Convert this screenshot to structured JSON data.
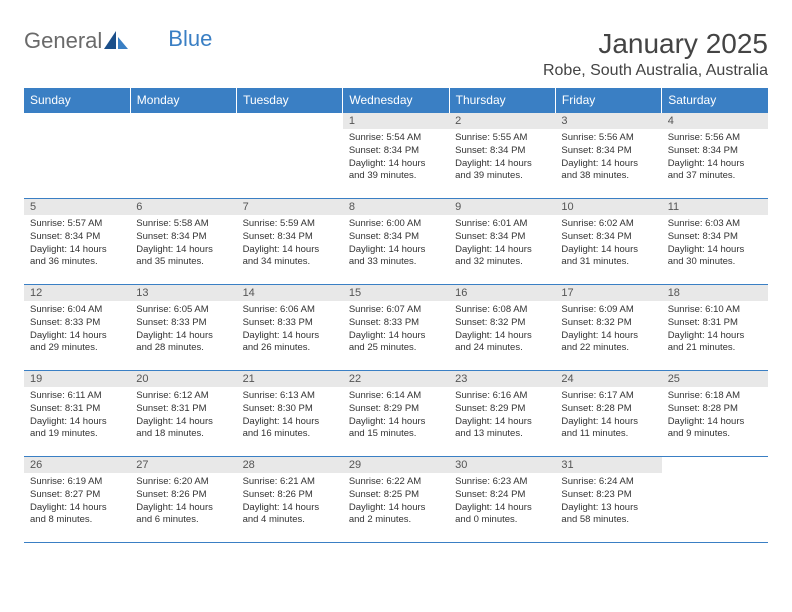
{
  "logo": {
    "general": "General",
    "blue": "Blue"
  },
  "title": "January 2025",
  "location": "Robe, South Australia, Australia",
  "columns": [
    "Sunday",
    "Monday",
    "Tuesday",
    "Wednesday",
    "Thursday",
    "Friday",
    "Saturday"
  ],
  "colors": {
    "header_bg": "#3a7fc4",
    "header_text": "#ffffff",
    "daynum_bg": "#e8e8e8",
    "border": "#3a7fc4",
    "text": "#333333"
  },
  "weeks": [
    [
      {
        "n": "",
        "lines": []
      },
      {
        "n": "",
        "lines": []
      },
      {
        "n": "",
        "lines": []
      },
      {
        "n": "1",
        "lines": [
          "Sunrise: 5:54 AM",
          "Sunset: 8:34 PM",
          "Daylight: 14 hours and 39 minutes."
        ]
      },
      {
        "n": "2",
        "lines": [
          "Sunrise: 5:55 AM",
          "Sunset: 8:34 PM",
          "Daylight: 14 hours and 39 minutes."
        ]
      },
      {
        "n": "3",
        "lines": [
          "Sunrise: 5:56 AM",
          "Sunset: 8:34 PM",
          "Daylight: 14 hours and 38 minutes."
        ]
      },
      {
        "n": "4",
        "lines": [
          "Sunrise: 5:56 AM",
          "Sunset: 8:34 PM",
          "Daylight: 14 hours and 37 minutes."
        ]
      }
    ],
    [
      {
        "n": "5",
        "lines": [
          "Sunrise: 5:57 AM",
          "Sunset: 8:34 PM",
          "Daylight: 14 hours and 36 minutes."
        ]
      },
      {
        "n": "6",
        "lines": [
          "Sunrise: 5:58 AM",
          "Sunset: 8:34 PM",
          "Daylight: 14 hours and 35 minutes."
        ]
      },
      {
        "n": "7",
        "lines": [
          "Sunrise: 5:59 AM",
          "Sunset: 8:34 PM",
          "Daylight: 14 hours and 34 minutes."
        ]
      },
      {
        "n": "8",
        "lines": [
          "Sunrise: 6:00 AM",
          "Sunset: 8:34 PM",
          "Daylight: 14 hours and 33 minutes."
        ]
      },
      {
        "n": "9",
        "lines": [
          "Sunrise: 6:01 AM",
          "Sunset: 8:34 PM",
          "Daylight: 14 hours and 32 minutes."
        ]
      },
      {
        "n": "10",
        "lines": [
          "Sunrise: 6:02 AM",
          "Sunset: 8:34 PM",
          "Daylight: 14 hours and 31 minutes."
        ]
      },
      {
        "n": "11",
        "lines": [
          "Sunrise: 6:03 AM",
          "Sunset: 8:34 PM",
          "Daylight: 14 hours and 30 minutes."
        ]
      }
    ],
    [
      {
        "n": "12",
        "lines": [
          "Sunrise: 6:04 AM",
          "Sunset: 8:33 PM",
          "Daylight: 14 hours and 29 minutes."
        ]
      },
      {
        "n": "13",
        "lines": [
          "Sunrise: 6:05 AM",
          "Sunset: 8:33 PM",
          "Daylight: 14 hours and 28 minutes."
        ]
      },
      {
        "n": "14",
        "lines": [
          "Sunrise: 6:06 AM",
          "Sunset: 8:33 PM",
          "Daylight: 14 hours and 26 minutes."
        ]
      },
      {
        "n": "15",
        "lines": [
          "Sunrise: 6:07 AM",
          "Sunset: 8:33 PM",
          "Daylight: 14 hours and 25 minutes."
        ]
      },
      {
        "n": "16",
        "lines": [
          "Sunrise: 6:08 AM",
          "Sunset: 8:32 PM",
          "Daylight: 14 hours and 24 minutes."
        ]
      },
      {
        "n": "17",
        "lines": [
          "Sunrise: 6:09 AM",
          "Sunset: 8:32 PM",
          "Daylight: 14 hours and 22 minutes."
        ]
      },
      {
        "n": "18",
        "lines": [
          "Sunrise: 6:10 AM",
          "Sunset: 8:31 PM",
          "Daylight: 14 hours and 21 minutes."
        ]
      }
    ],
    [
      {
        "n": "19",
        "lines": [
          "Sunrise: 6:11 AM",
          "Sunset: 8:31 PM",
          "Daylight: 14 hours and 19 minutes."
        ]
      },
      {
        "n": "20",
        "lines": [
          "Sunrise: 6:12 AM",
          "Sunset: 8:31 PM",
          "Daylight: 14 hours and 18 minutes."
        ]
      },
      {
        "n": "21",
        "lines": [
          "Sunrise: 6:13 AM",
          "Sunset: 8:30 PM",
          "Daylight: 14 hours and 16 minutes."
        ]
      },
      {
        "n": "22",
        "lines": [
          "Sunrise: 6:14 AM",
          "Sunset: 8:29 PM",
          "Daylight: 14 hours and 15 minutes."
        ]
      },
      {
        "n": "23",
        "lines": [
          "Sunrise: 6:16 AM",
          "Sunset: 8:29 PM",
          "Daylight: 14 hours and 13 minutes."
        ]
      },
      {
        "n": "24",
        "lines": [
          "Sunrise: 6:17 AM",
          "Sunset: 8:28 PM",
          "Daylight: 14 hours and 11 minutes."
        ]
      },
      {
        "n": "25",
        "lines": [
          "Sunrise: 6:18 AM",
          "Sunset: 8:28 PM",
          "Daylight: 14 hours and 9 minutes."
        ]
      }
    ],
    [
      {
        "n": "26",
        "lines": [
          "Sunrise: 6:19 AM",
          "Sunset: 8:27 PM",
          "Daylight: 14 hours and 8 minutes."
        ]
      },
      {
        "n": "27",
        "lines": [
          "Sunrise: 6:20 AM",
          "Sunset: 8:26 PM",
          "Daylight: 14 hours and 6 minutes."
        ]
      },
      {
        "n": "28",
        "lines": [
          "Sunrise: 6:21 AM",
          "Sunset: 8:26 PM",
          "Daylight: 14 hours and 4 minutes."
        ]
      },
      {
        "n": "29",
        "lines": [
          "Sunrise: 6:22 AM",
          "Sunset: 8:25 PM",
          "Daylight: 14 hours and 2 minutes."
        ]
      },
      {
        "n": "30",
        "lines": [
          "Sunrise: 6:23 AM",
          "Sunset: 8:24 PM",
          "Daylight: 14 hours and 0 minutes."
        ]
      },
      {
        "n": "31",
        "lines": [
          "Sunrise: 6:24 AM",
          "Sunset: 8:23 PM",
          "Daylight: 13 hours and 58 minutes."
        ]
      },
      {
        "n": "",
        "lines": []
      }
    ]
  ]
}
